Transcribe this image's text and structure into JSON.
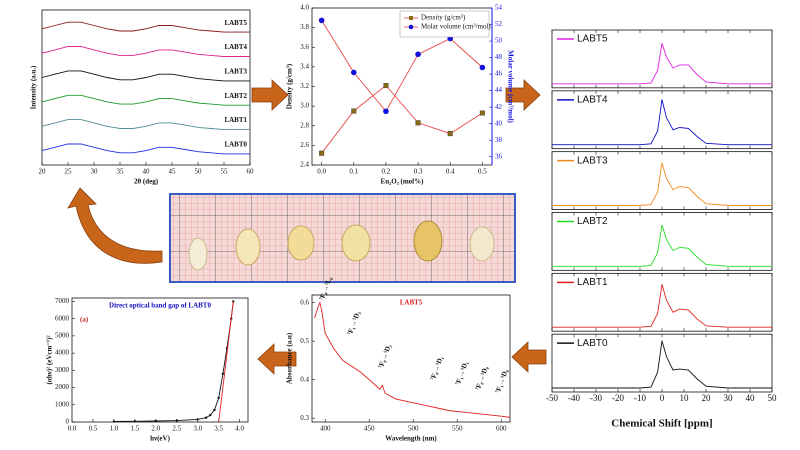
{
  "chart_data": [
    {
      "type": "line",
      "xlabel": "2θ (deg)",
      "ylabel": "Intensity (a.u.)",
      "xlim": [
        20,
        60
      ],
      "xticks": [
        20,
        25,
        30,
        35,
        40,
        45,
        50,
        55,
        60
      ],
      "ylim": [
        0,
        7
      ],
      "labels": "inline",
      "x": [
        20,
        22.5,
        25,
        27.5,
        30,
        32.5,
        35,
        37.5,
        40,
        42.5,
        45,
        47.5,
        50,
        52.5,
        55,
        57.5,
        60
      ],
      "series": [
        {
          "name": "LABT0",
          "color": "#1f2fe0",
          "values": [
            0.65,
            0.8,
            0.95,
            0.95,
            0.8,
            0.65,
            0.55,
            0.55,
            0.65,
            0.8,
            0.8,
            0.7,
            0.6,
            0.55,
            0.5,
            0.5,
            0.5
          ]
        },
        {
          "name": "LABT1",
          "color": "#4f8f94",
          "values": [
            1.75,
            1.9,
            2.05,
            2.05,
            1.9,
            1.75,
            1.65,
            1.65,
            1.75,
            1.9,
            1.9,
            1.8,
            1.7,
            1.65,
            1.6,
            1.6,
            1.6
          ]
        },
        {
          "name": "LABT2",
          "color": "#1e9b2c",
          "values": [
            2.85,
            3.0,
            3.15,
            3.15,
            3.0,
            2.85,
            2.75,
            2.75,
            2.85,
            3.0,
            3.0,
            2.9,
            2.8,
            2.75,
            2.7,
            2.7,
            2.7
          ]
        },
        {
          "name": "LABT3",
          "color": "#111111",
          "values": [
            3.95,
            4.1,
            4.25,
            4.25,
            4.1,
            3.95,
            3.85,
            3.85,
            3.95,
            4.1,
            4.1,
            4.0,
            3.9,
            3.85,
            3.8,
            3.8,
            3.8
          ]
        },
        {
          "name": "LABT4",
          "color": "#e0208f",
          "values": [
            5.05,
            5.2,
            5.35,
            5.35,
            5.2,
            5.05,
            4.95,
            4.95,
            5.05,
            5.2,
            5.2,
            5.1,
            5.0,
            4.95,
            4.9,
            4.9,
            4.9
          ]
        },
        {
          "name": "LABT5",
          "color": "#8b1a1a",
          "values": [
            6.15,
            6.3,
            6.45,
            6.45,
            6.3,
            6.15,
            6.05,
            6.05,
            6.15,
            6.3,
            6.3,
            6.2,
            6.1,
            6.05,
            6.0,
            6.0,
            6.0
          ]
        }
      ]
    },
    {
      "type": "line",
      "xlabel": "Eu₂O₃ (mol%)",
      "ylabel": "Density (g/cm³)",
      "y2label": "Molar volume (cm³/mol)",
      "xlim": [
        -0.03,
        0.53
      ],
      "xticks": [
        {
          "value": 0,
          "label": "0.0"
        },
        0.1,
        0.2,
        0.3,
        0.4,
        0.5
      ],
      "ylim": [
        2.4,
        4.0
      ],
      "yticks": [
        2.4,
        2.6,
        2.8,
        {
          "value": 3.0,
          "label": "3.0"
        },
        3.2,
        3.4,
        3.6,
        3.8,
        {
          "value": 4.0,
          "label": "4.0"
        }
      ],
      "y2lim": [
        35,
        54
      ],
      "y2ticks": [
        36,
        38,
        40,
        42,
        44,
        46,
        48,
        50,
        52,
        54
      ],
      "legend": "upper right",
      "line_color": "#e84848",
      "x": [
        0,
        0.1,
        0.2,
        0.3,
        0.4,
        0.5
      ],
      "series": [
        {
          "name": "Density (g/cm³)",
          "color": "#8b6a14",
          "marker": "square",
          "values": [
            2.52,
            2.95,
            3.21,
            2.83,
            2.72,
            2.93
          ]
        },
        {
          "name": "Molar volume (cm³/mol)",
          "color": "#1010e0",
          "marker": "circle",
          "axis": "y2",
          "values": [
            52.5,
            46.2,
            41.5,
            48.4,
            50.3,
            46.8
          ]
        }
      ]
    },
    {
      "type": "multiples",
      "xlabel": "Chemical Shift [ppm]",
      "xlim": [
        -50,
        50
      ],
      "xticks": [
        -50,
        -40,
        -30,
        -20,
        -10,
        0,
        10,
        20,
        30,
        40,
        50
      ],
      "ylim": [
        0,
        1.15
      ],
      "x": [
        -50,
        -10,
        -5,
        -2,
        0,
        2,
        5,
        8,
        12,
        16,
        20,
        30,
        50
      ],
      "series": [
        {
          "name": "LABT5",
          "color": "#e020e0",
          "values": [
            0,
            0,
            0.02,
            0.3,
            0.9,
            0.6,
            0.35,
            0.42,
            0.42,
            0.2,
            0.04,
            0,
            0
          ]
        },
        {
          "name": "LABT4",
          "color": "#1010c8",
          "values": [
            0,
            0,
            0.02,
            0.3,
            1.0,
            0.6,
            0.33,
            0.38,
            0.36,
            0.18,
            0.03,
            0,
            0
          ]
        },
        {
          "name": "LABT3",
          "color": "#f08a1c",
          "values": [
            0,
            0,
            0.02,
            0.3,
            0.95,
            0.6,
            0.35,
            0.42,
            0.4,
            0.2,
            0.04,
            0,
            0
          ]
        },
        {
          "name": "LABT2",
          "color": "#22dd22",
          "values": [
            0,
            0,
            0.02,
            0.3,
            0.92,
            0.6,
            0.35,
            0.42,
            0.4,
            0.2,
            0.04,
            0,
            0
          ]
        },
        {
          "name": "LABT1",
          "color": "#e02020",
          "values": [
            0,
            0,
            0.02,
            0.3,
            0.95,
            0.6,
            0.33,
            0.4,
            0.38,
            0.18,
            0.03,
            0,
            0
          ]
        },
        {
          "name": "LABT0",
          "color": "#111111",
          "values": [
            0,
            0,
            0.02,
            0.35,
            1.05,
            0.7,
            0.4,
            0.42,
            0.4,
            0.2,
            0.04,
            0,
            0
          ]
        }
      ]
    },
    {
      "type": "line",
      "title": "LABT5",
      "xlabel": "Wavelength (nm)",
      "ylabel": "Absorbance (a.u)",
      "xlim": [
        385,
        610
      ],
      "xticks": [
        400,
        450,
        500,
        550,
        600
      ],
      "ylim": [
        0.29,
        0.62
      ],
      "yticks": [
        0.3,
        0.4,
        0.5,
        0.6
      ],
      "annotations": [
        "⁷F₀→⁵L₆",
        "⁷F₁→⁵D₃",
        "⁷F₀→⁵D₂",
        "⁷F₀→⁵D₁",
        "⁷F₁→⁵D₁",
        "⁷F₀→⁵D₀",
        "⁷F₁→⁵D₀"
      ],
      "x": [
        388,
        392,
        394,
        396,
        400,
        410,
        420,
        440,
        455,
        462,
        465,
        468,
        480,
        500,
        520,
        530,
        540,
        560,
        580,
        600,
        610
      ],
      "series": [
        {
          "color": "#e02020",
          "values": [
            0.56,
            0.59,
            0.6,
            0.58,
            0.52,
            0.48,
            0.45,
            0.42,
            0.39,
            0.375,
            0.385,
            0.365,
            0.35,
            0.34,
            0.33,
            0.325,
            0.32,
            0.315,
            0.31,
            0.305,
            0.302
          ]
        }
      ]
    },
    {
      "type": "line",
      "title": "Direct optical band gap of LABT0",
      "label": "(a)",
      "xlabel": "hν(eV)",
      "ylabel": "(αhν)² (eVcm⁻¹)²",
      "xlim": [
        0,
        4.2
      ],
      "xticks": [
        {
          "value": 0,
          "label": "0.0"
        },
        0.5,
        {
          "value": 1,
          "label": "1.0"
        },
        1.5,
        {
          "value": 2,
          "label": "2.0"
        },
        2.5,
        {
          "value": 3,
          "label": "3.0"
        },
        3.5,
        {
          "value": 4,
          "label": "4.0"
        }
      ],
      "ylim": [
        0,
        7200
      ],
      "yticks": [
        0,
        1000,
        2000,
        3000,
        4000,
        5000,
        6000,
        7000
      ],
      "x": [
        1.0,
        1.5,
        2.0,
        2.5,
        3.0,
        3.2,
        3.3,
        3.4,
        3.5,
        3.6,
        3.7,
        3.8,
        3.85
      ],
      "series": [
        {
          "color": "#111111",
          "marker": "circle",
          "values": [
            30,
            40,
            60,
            80,
            150,
            250,
            400,
            700,
            1400,
            2800,
            4300,
            6000,
            7000
          ]
        },
        {
          "color": "#e02020",
          "x": [
            3.5,
            3.85
          ],
          "values": [
            0,
            7000
          ]
        }
      ]
    }
  ]
}
